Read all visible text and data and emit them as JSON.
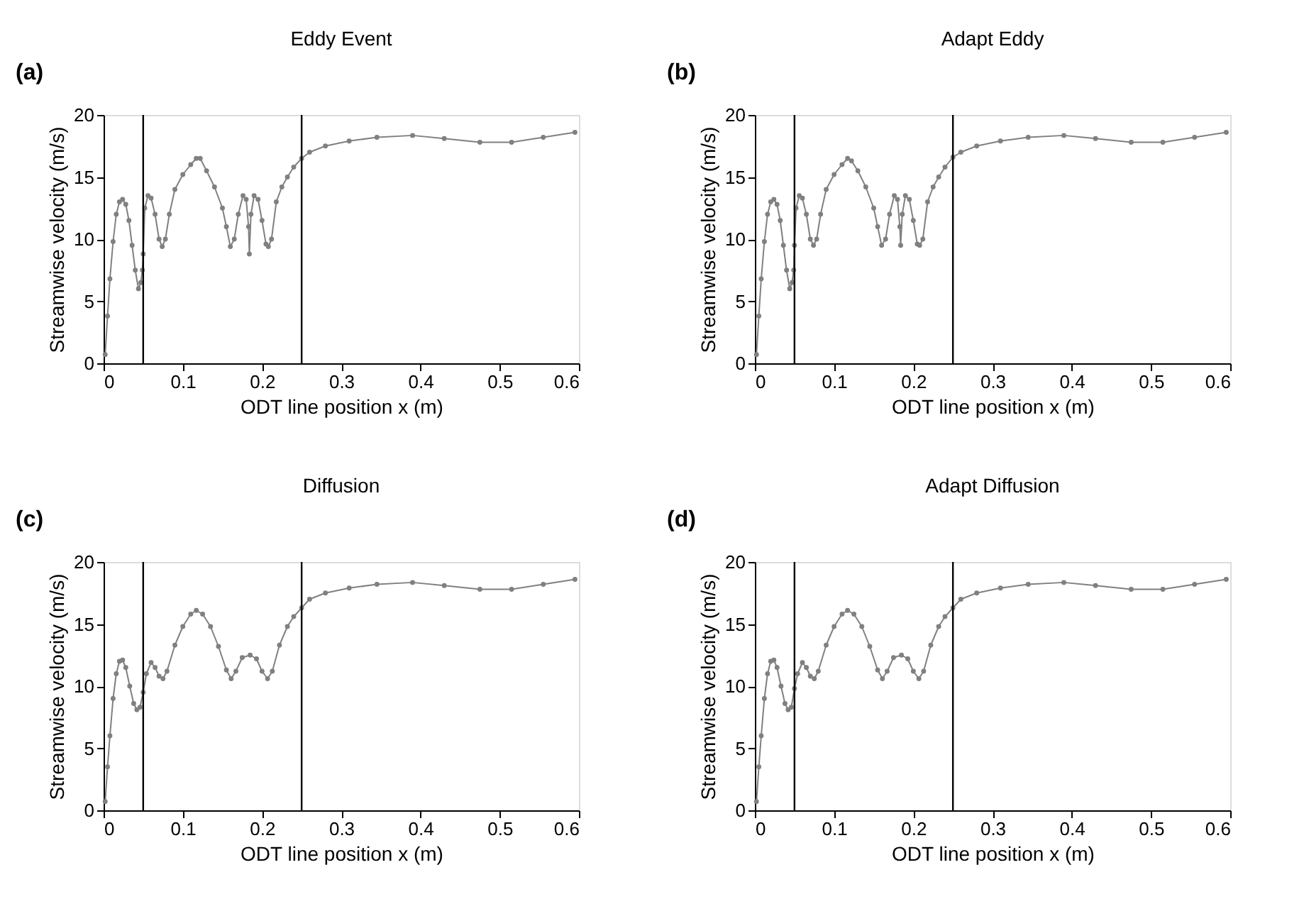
{
  "chart_data": [
    {
      "type": "line",
      "title": "Eddy Event",
      "xlabel": "ODT line position x (m)",
      "ylabel": "Streamwise velocity (m/s)",
      "annotations": [
        "(a)"
      ],
      "x": [
        0.002,
        0.005,
        0.008,
        0.012,
        0.016,
        0.02,
        0.024,
        0.028,
        0.032,
        0.036,
        0.04,
        0.044,
        0.047,
        0.049,
        0.05,
        0.052,
        0.056,
        0.06,
        0.065,
        0.07,
        0.074,
        0.078,
        0.083,
        0.09,
        0.1,
        0.11,
        0.117,
        0.122,
        0.13,
        0.14,
        0.15,
        0.155,
        0.16,
        0.165,
        0.17,
        0.176,
        0.18,
        0.183,
        0.184,
        0.186,
        0.19,
        0.195,
        0.2,
        0.205,
        0.208,
        0.212,
        0.218,
        0.225,
        0.232,
        0.24,
        0.25,
        0.26,
        0.28,
        0.31,
        0.345,
        0.39,
        0.43,
        0.475,
        0.515,
        0.555,
        0.595
      ],
      "series": [
        {
          "color": "#808080",
          "values": [
            0.7,
            3.8,
            6.8,
            9.8,
            12,
            13,
            13.2,
            12.8,
            11.5,
            9.5,
            7.5,
            6,
            6.5,
            7.5,
            8.8,
            12.5,
            13.5,
            13.3,
            12,
            10,
            9.4,
            10,
            12,
            14,
            15.2,
            16,
            16.5,
            16.5,
            15.5,
            14.2,
            12.5,
            11,
            9.4,
            10,
            12,
            13.5,
            13.2,
            11,
            8.8,
            12,
            13.5,
            13.2,
            11.5,
            9.6,
            9.4,
            10,
            13,
            14.2,
            15,
            15.8,
            16.5,
            17,
            17.5,
            17.9,
            18.2,
            18.35,
            18.1,
            17.8,
            17.8,
            18.2,
            18.6
          ]
        }
      ],
      "xlim": [
        0,
        0.6
      ],
      "ylim": [
        0,
        20
      ],
      "xticks": [
        0,
        0.1,
        0.2,
        0.3,
        0.4,
        0.5,
        0.6
      ],
      "yticks": [
        0,
        5,
        10,
        15,
        20
      ],
      "marker": "circle",
      "line_style": "solid",
      "grid": false,
      "ref_lines": [
        {
          "axis": "x",
          "value": 0.05,
          "color": "#000000"
        },
        {
          "axis": "x",
          "value": 0.25,
          "color": "#000000"
        }
      ]
    },
    {
      "type": "line",
      "title": "Adapt Eddy",
      "xlabel": "ODT line position x (m)",
      "ylabel": "Streamwise velocity (m/s)",
      "annotations": [
        "(b)"
      ],
      "x": [
        0.002,
        0.005,
        0.008,
        0.012,
        0.016,
        0.02,
        0.024,
        0.028,
        0.032,
        0.036,
        0.04,
        0.044,
        0.047,
        0.049,
        0.05,
        0.052,
        0.056,
        0.06,
        0.065,
        0.07,
        0.074,
        0.078,
        0.083,
        0.09,
        0.1,
        0.11,
        0.117,
        0.122,
        0.13,
        0.14,
        0.15,
        0.155,
        0.16,
        0.165,
        0.17,
        0.176,
        0.18,
        0.183,
        0.184,
        0.186,
        0.19,
        0.195,
        0.2,
        0.205,
        0.208,
        0.212,
        0.218,
        0.225,
        0.232,
        0.24,
        0.25,
        0.26,
        0.28,
        0.31,
        0.345,
        0.39,
        0.43,
        0.475,
        0.515,
        0.555,
        0.595
      ],
      "series": [
        {
          "color": "#808080",
          "values": [
            0.7,
            3.8,
            6.8,
            9.8,
            12,
            13,
            13.2,
            12.8,
            11.5,
            9.5,
            7.5,
            6,
            6.5,
            7.5,
            9.5,
            12.5,
            13.5,
            13.3,
            12,
            10,
            9.5,
            10,
            12,
            14,
            15.2,
            16,
            16.5,
            16.3,
            15.5,
            14.2,
            12.5,
            11,
            9.5,
            10,
            12,
            13.5,
            13.2,
            11,
            9.5,
            12,
            13.5,
            13.2,
            11.5,
            9.6,
            9.5,
            10,
            13,
            14.2,
            15,
            15.8,
            16.6,
            17,
            17.5,
            17.9,
            18.2,
            18.35,
            18.1,
            17.8,
            17.8,
            18.2,
            18.6
          ]
        }
      ],
      "xlim": [
        0,
        0.6
      ],
      "ylim": [
        0,
        20
      ],
      "xticks": [
        0,
        0.1,
        0.2,
        0.3,
        0.4,
        0.5,
        0.6
      ],
      "yticks": [
        0,
        5,
        10,
        15,
        20
      ],
      "marker": "circle",
      "line_style": "solid",
      "grid": false,
      "ref_lines": [
        {
          "axis": "x",
          "value": 0.05,
          "color": "#000000"
        },
        {
          "axis": "x",
          "value": 0.25,
          "color": "#000000"
        }
      ]
    },
    {
      "type": "line",
      "title": "Diffusion",
      "xlabel": "ODT line position x (m)",
      "ylabel": "Streamwise velocity (m/s)",
      "annotations": [
        "(c)"
      ],
      "x": [
        0.002,
        0.005,
        0.008,
        0.012,
        0.016,
        0.02,
        0.024,
        0.028,
        0.033,
        0.038,
        0.042,
        0.046,
        0.05,
        0.054,
        0.06,
        0.065,
        0.07,
        0.075,
        0.08,
        0.09,
        0.1,
        0.11,
        0.117,
        0.125,
        0.135,
        0.145,
        0.155,
        0.161,
        0.167,
        0.175,
        0.185,
        0.193,
        0.2,
        0.207,
        0.213,
        0.222,
        0.232,
        0.24,
        0.25,
        0.26,
        0.28,
        0.31,
        0.345,
        0.39,
        0.43,
        0.475,
        0.515,
        0.555,
        0.595
      ],
      "series": [
        {
          "color": "#808080",
          "values": [
            0.7,
            3.5,
            6,
            9,
            11,
            12,
            12.1,
            11.5,
            10,
            8.6,
            8.1,
            8.3,
            9.5,
            11,
            11.9,
            11.5,
            10.8,
            10.6,
            11.2,
            13.3,
            14.8,
            15.8,
            16.1,
            15.8,
            14.8,
            13.2,
            11.3,
            10.6,
            11.2,
            12.3,
            12.5,
            12.2,
            11.2,
            10.6,
            11.2,
            13.3,
            14.8,
            15.6,
            16.3,
            17,
            17.5,
            17.9,
            18.2,
            18.35,
            18.1,
            17.8,
            17.8,
            18.2,
            18.6
          ]
        }
      ],
      "xlim": [
        0,
        0.6
      ],
      "ylim": [
        0,
        20
      ],
      "xticks": [
        0,
        0.1,
        0.2,
        0.3,
        0.4,
        0.5,
        0.6
      ],
      "yticks": [
        0,
        5,
        10,
        15,
        20
      ],
      "marker": "circle",
      "line_style": "solid",
      "grid": false,
      "ref_lines": [
        {
          "axis": "x",
          "value": 0.05,
          "color": "#000000"
        },
        {
          "axis": "x",
          "value": 0.25,
          "color": "#000000"
        }
      ]
    },
    {
      "type": "line",
      "title": "Adapt Diffusion",
      "xlabel": "ODT line position x (m)",
      "ylabel": "Streamwise velocity (m/s)",
      "annotations": [
        "(d)"
      ],
      "x": [
        0.002,
        0.005,
        0.008,
        0.012,
        0.016,
        0.02,
        0.024,
        0.028,
        0.033,
        0.038,
        0.042,
        0.046,
        0.05,
        0.054,
        0.06,
        0.065,
        0.07,
        0.075,
        0.08,
        0.09,
        0.1,
        0.11,
        0.117,
        0.125,
        0.135,
        0.145,
        0.155,
        0.161,
        0.167,
        0.175,
        0.185,
        0.193,
        0.2,
        0.207,
        0.213,
        0.222,
        0.232,
        0.24,
        0.25,
        0.26,
        0.28,
        0.31,
        0.345,
        0.39,
        0.43,
        0.475,
        0.515,
        0.555,
        0.595
      ],
      "series": [
        {
          "color": "#808080",
          "values": [
            0.7,
            3.5,
            6,
            9,
            11,
            12,
            12.1,
            11.5,
            10,
            8.6,
            8.1,
            8.3,
            9.8,
            11,
            11.9,
            11.5,
            10.8,
            10.6,
            11.2,
            13.3,
            14.8,
            15.8,
            16.1,
            15.8,
            14.8,
            13.2,
            11.3,
            10.6,
            11.2,
            12.3,
            12.5,
            12.2,
            11.2,
            10.6,
            11.2,
            13.3,
            14.8,
            15.6,
            16.3,
            17,
            17.5,
            17.9,
            18.2,
            18.35,
            18.1,
            17.8,
            17.8,
            18.2,
            18.6
          ]
        }
      ],
      "xlim": [
        0,
        0.6
      ],
      "ylim": [
        0,
        20
      ],
      "xticks": [
        0,
        0.1,
        0.2,
        0.3,
        0.4,
        0.5,
        0.6
      ],
      "yticks": [
        0,
        5,
        10,
        15,
        20
      ],
      "marker": "circle",
      "line_style": "solid",
      "grid": false,
      "ref_lines": [
        {
          "axis": "x",
          "value": 0.05,
          "color": "#000000"
        },
        {
          "axis": "x",
          "value": 0.25,
          "color": "#000000"
        }
      ]
    }
  ]
}
